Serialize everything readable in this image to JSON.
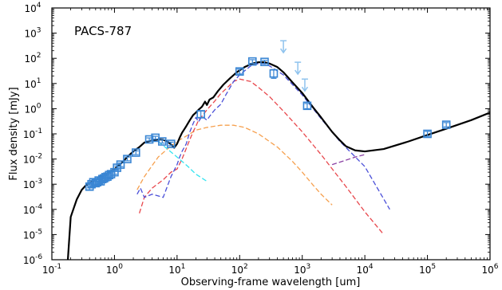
{
  "chart_data": {
    "type": "scatter",
    "title": "",
    "panel_label": "PACS-787",
    "xlabel": "Observing-frame wavelength [um]",
    "ylabel": "Flux density [mJy]",
    "xscale": "log",
    "yscale": "log",
    "xlim": [
      0.1,
      1000000
    ],
    "ylim": [
      1e-06,
      10000
    ],
    "xticks": [
      {
        "value": 0.1,
        "base": "10",
        "exp": "-1"
      },
      {
        "value": 1,
        "base": "10",
        "exp": "0"
      },
      {
        "value": 10,
        "base": "10",
        "exp": "1"
      },
      {
        "value": 100,
        "base": "10",
        "exp": "2"
      },
      {
        "value": 1000,
        "base": "10",
        "exp": "3"
      },
      {
        "value": 10000,
        "base": "10",
        "exp": "4"
      },
      {
        "value": 100000,
        "base": "10",
        "exp": "5"
      },
      {
        "value": 1000000,
        "base": "10",
        "exp": "6"
      }
    ],
    "yticks": [
      {
        "value": 1e-06,
        "base": "10",
        "exp": "-6"
      },
      {
        "value": 1e-05,
        "base": "10",
        "exp": "-5"
      },
      {
        "value": 0.0001,
        "base": "10",
        "exp": "-4"
      },
      {
        "value": 0.001,
        "base": "10",
        "exp": "-3"
      },
      {
        "value": 0.01,
        "base": "10",
        "exp": "-2"
      },
      {
        "value": 0.1,
        "base": "10",
        "exp": "-1"
      },
      {
        "value": 1,
        "base": "10",
        "exp": "0"
      },
      {
        "value": 10,
        "base": "10",
        "exp": "1"
      },
      {
        "value": 100,
        "base": "10",
        "exp": "2"
      },
      {
        "value": 1000,
        "base": "10",
        "exp": "3"
      },
      {
        "value": 10000,
        "base": "10",
        "exp": "4"
      }
    ],
    "grid": false,
    "colors": {
      "total": "#000000",
      "photometry": "#3a86d4",
      "upper_limits": "#8fc3ee",
      "stellar": "#33e4f0",
      "dust_cold": "#4a4fd8",
      "dust_warm": "#e8474c",
      "agn": "#f6a04e",
      "radio": "#8a3fa3"
    },
    "series": [
      {
        "role": "total_model",
        "style": "solid",
        "points": [
          [
            0.18,
            1e-06
          ],
          [
            0.2,
            5e-05
          ],
          [
            0.22,
            0.0001
          ],
          [
            0.25,
            0.00025
          ],
          [
            0.3,
            0.0006
          ],
          [
            0.35,
            0.0009
          ],
          [
            0.45,
            0.0013
          ],
          [
            0.6,
            0.002
          ],
          [
            0.8,
            0.0028
          ],
          [
            1.0,
            0.004
          ],
          [
            1.3,
            0.007
          ],
          [
            1.6,
            0.012
          ],
          [
            2.0,
            0.02
          ],
          [
            2.5,
            0.03
          ],
          [
            3.0,
            0.045
          ],
          [
            4.0,
            0.055
          ],
          [
            5.0,
            0.06
          ],
          [
            6.0,
            0.058
          ],
          [
            7.0,
            0.05
          ],
          [
            8.0,
            0.038
          ],
          [
            9.0,
            0.028
          ],
          [
            10.0,
            0.04
          ],
          [
            11.0,
            0.07
          ],
          [
            12.0,
            0.11
          ],
          [
            14.0,
            0.2
          ],
          [
            16.0,
            0.35
          ],
          [
            18.0,
            0.55
          ],
          [
            20.0,
            0.7
          ],
          [
            22.0,
            0.9
          ],
          [
            25.0,
            1.2
          ],
          [
            28.0,
            1.9
          ],
          [
            30.0,
            1.4
          ],
          [
            33.0,
            2.3
          ],
          [
            38.0,
            2.8
          ],
          [
            45.0,
            5
          ],
          [
            55.0,
            9
          ],
          [
            70.0,
            16
          ],
          [
            90.0,
            28
          ],
          [
            120.0,
            45
          ],
          [
            160.0,
            62
          ],
          [
            200.0,
            70
          ],
          [
            250.0,
            70
          ],
          [
            300.0,
            62
          ],
          [
            400.0,
            45
          ],
          [
            500.0,
            28
          ],
          [
            700.0,
            11
          ],
          [
            1000.0,
            4.2
          ],
          [
            1500.0,
            1.1
          ],
          [
            2000.0,
            0.45
          ],
          [
            3000.0,
            0.12
          ],
          [
            4000.0,
            0.055
          ],
          [
            5000.0,
            0.032
          ],
          [
            7000.0,
            0.022
          ],
          [
            10000.0,
            0.02
          ],
          [
            20000.0,
            0.025
          ],
          [
            50000.0,
            0.05
          ],
          [
            100000.0,
            0.09
          ],
          [
            200000.0,
            0.16
          ],
          [
            500000.0,
            0.35
          ],
          [
            1000000.0,
            0.7
          ]
        ]
      },
      {
        "role": "stellar_component",
        "style": "dashed",
        "points": [
          [
            5.0,
            0.05
          ],
          [
            7.0,
            0.025
          ],
          [
            10.0,
            0.012
          ],
          [
            15.0,
            0.005
          ],
          [
            20.0,
            0.0025
          ],
          [
            30.0,
            0.0013
          ]
        ]
      },
      {
        "role": "agn_component",
        "style": "dashed",
        "points": [
          [
            2.3,
            0.0006
          ],
          [
            3.0,
            0.002
          ],
          [
            4.0,
            0.0055
          ],
          [
            5.0,
            0.012
          ],
          [
            7.0,
            0.025
          ],
          [
            10.0,
            0.05
          ],
          [
            15.0,
            0.09
          ],
          [
            20.0,
            0.14
          ],
          [
            30.0,
            0.18
          ],
          [
            50.0,
            0.22
          ],
          [
            80.0,
            0.22
          ],
          [
            120.0,
            0.18
          ],
          [
            200.0,
            0.1
          ],
          [
            400.0,
            0.03
          ],
          [
            700.0,
            0.008
          ],
          [
            1000.0,
            0.003
          ],
          [
            1500.0,
            0.0009
          ],
          [
            2000.0,
            0.0004
          ],
          [
            3000.0,
            0.00015
          ]
        ]
      },
      {
        "role": "warm_dust_component",
        "style": "dashed",
        "points": [
          [
            2.5,
            7e-05
          ],
          [
            3.0,
            0.0003
          ],
          [
            4.0,
            0.0007
          ],
          [
            6.0,
            0.0015
          ],
          [
            8.0,
            0.003
          ],
          [
            10.0,
            0.004
          ],
          [
            12.0,
            0.01
          ],
          [
            15.0,
            0.04
          ],
          [
            18.0,
            0.12
          ],
          [
            20.0,
            0.2
          ],
          [
            22.0,
            0.35
          ],
          [
            25.0,
            0.5
          ],
          [
            30.0,
            0.9
          ],
          [
            40.0,
            2.0
          ],
          [
            50.0,
            4
          ],
          [
            60.0,
            6
          ],
          [
            80.0,
            12
          ],
          [
            100.0,
            15
          ],
          [
            150.0,
            12
          ],
          [
            200.0,
            7
          ],
          [
            300.0,
            3
          ],
          [
            500.0,
            0.8
          ],
          [
            1000.0,
            0.12
          ],
          [
            2000.0,
            0.015
          ],
          [
            5000.0,
            0.0008
          ],
          [
            10000.0,
            8e-05
          ],
          [
            20000.0,
            1e-05
          ]
        ]
      },
      {
        "role": "cold_dust_component",
        "style": "dashed",
        "points": [
          [
            2.3,
            0.0004
          ],
          [
            2.6,
            0.0007
          ],
          [
            3.0,
            0.0003
          ],
          [
            4.0,
            0.0004
          ],
          [
            6.0,
            0.0003
          ],
          [
            8.0,
            0.002
          ],
          [
            10.0,
            0.006
          ],
          [
            11.0,
            0.012
          ],
          [
            12.0,
            0.02
          ],
          [
            14.0,
            0.04
          ],
          [
            16.0,
            0.12
          ],
          [
            18.0,
            0.25
          ],
          [
            20.0,
            0.45
          ],
          [
            22.0,
            0.3
          ],
          [
            25.0,
            0.5
          ],
          [
            30.0,
            0.35
          ],
          [
            35.0,
            0.6
          ],
          [
            40.0,
            0.9
          ],
          [
            50.0,
            1.5
          ],
          [
            60.0,
            3.5
          ],
          [
            80.0,
            12
          ],
          [
            100.0,
            22
          ],
          [
            150.0,
            50
          ],
          [
            200.0,
            62
          ],
          [
            250.0,
            60
          ],
          [
            300.0,
            50
          ],
          [
            500.0,
            22
          ],
          [
            1000.0,
            3.5
          ],
          [
            2000.0,
            0.4
          ],
          [
            4000.0,
            0.05
          ],
          [
            10000.0,
            0.005
          ],
          [
            25000.0,
            0.0001
          ]
        ]
      },
      {
        "role": "radio_component",
        "style": "dashed",
        "points": [
          [
            3000.0,
            0.006
          ],
          [
            5000.0,
            0.009
          ],
          [
            7000.0,
            0.012
          ],
          [
            10000.0,
            0.015
          ]
        ]
      }
    ],
    "photometry": [
      {
        "x": 0.4,
        "y": 0.0008,
        "yerr_lo": 0.0006,
        "yerr_hi": 0.001
      },
      {
        "x": 0.43,
        "y": 0.001,
        "yerr_lo": 0.0008,
        "yerr_hi": 0.0012
      },
      {
        "x": 0.46,
        "y": 0.0012,
        "yerr_lo": 0.001,
        "yerr_hi": 0.0014
      },
      {
        "x": 0.5,
        "y": 0.0011,
        "yerr_lo": 0.0009,
        "yerr_hi": 0.0013
      },
      {
        "x": 0.53,
        "y": 0.0012,
        "yerr_lo": 0.001,
        "yerr_hi": 0.0015
      },
      {
        "x": 0.56,
        "y": 0.0014,
        "yerr_lo": 0.0012,
        "yerr_hi": 0.0017
      },
      {
        "x": 0.6,
        "y": 0.0013,
        "yerr_lo": 0.0011,
        "yerr_hi": 0.0016
      },
      {
        "x": 0.64,
        "y": 0.0016,
        "yerr_lo": 0.0013,
        "yerr_hi": 0.0019
      },
      {
        "x": 0.68,
        "y": 0.0017,
        "yerr_lo": 0.0014,
        "yerr_hi": 0.002
      },
      {
        "x": 0.72,
        "y": 0.0019,
        "yerr_lo": 0.0016,
        "yerr_hi": 0.0022
      },
      {
        "x": 0.77,
        "y": 0.002,
        "yerr_lo": 0.0017,
        "yerr_hi": 0.0024
      },
      {
        "x": 0.82,
        "y": 0.0023,
        "yerr_lo": 0.0019,
        "yerr_hi": 0.0027
      },
      {
        "x": 0.88,
        "y": 0.0025,
        "yerr_lo": 0.0021,
        "yerr_hi": 0.003
      },
      {
        "x": 1.0,
        "y": 0.003,
        "yerr_lo": 0.0025,
        "yerr_hi": 0.0036
      },
      {
        "x": 1.1,
        "y": 0.0045,
        "yerr_lo": 0.0038,
        "yerr_hi": 0.0053
      },
      {
        "x": 1.25,
        "y": 0.006,
        "yerr_lo": 0.005,
        "yerr_hi": 0.007
      },
      {
        "x": 1.6,
        "y": 0.01,
        "yerr_lo": 0.0085,
        "yerr_hi": 0.012
      },
      {
        "x": 2.2,
        "y": 0.018,
        "yerr_lo": 0.015,
        "yerr_hi": 0.021
      },
      {
        "x": 3.6,
        "y": 0.06,
        "yerr_lo": 0.052,
        "yerr_hi": 0.069
      },
      {
        "x": 4.5,
        "y": 0.07,
        "yerr_lo": 0.061,
        "yerr_hi": 0.08
      },
      {
        "x": 5.8,
        "y": 0.05,
        "yerr_lo": 0.043,
        "yerr_hi": 0.058
      },
      {
        "x": 8.0,
        "y": 0.04,
        "yerr_lo": 0.034,
        "yerr_hi": 0.047
      },
      {
        "x": 24.0,
        "y": 0.6,
        "yerr_lo": 0.45,
        "yerr_hi": 0.8
      },
      {
        "x": 100.0,
        "y": 30,
        "yerr_lo": 24,
        "yerr_hi": 37
      },
      {
        "x": 160.0,
        "y": 75,
        "yerr_lo": 63,
        "yerr_hi": 88
      },
      {
        "x": 250.0,
        "y": 72,
        "yerr_lo": 61,
        "yerr_hi": 84
      },
      {
        "x": 350.0,
        "y": 25,
        "yerr_lo": 16,
        "yerr_hi": 36
      },
      {
        "x": 1200.0,
        "y": 1.3,
        "yerr_lo": 1.0,
        "yerr_hi": 1.6
      },
      {
        "x": 100000.0,
        "y": 0.1,
        "yerr_lo": 0.08,
        "yerr_hi": 0.125
      },
      {
        "x": 200000.0,
        "y": 0.23,
        "yerr_lo": 0.19,
        "yerr_hi": 0.28
      }
    ],
    "upper_limits": [
      {
        "x": 500.0,
        "y": 500
      },
      {
        "x": 850.0,
        "y": 70
      },
      {
        "x": 1100.0,
        "y": 15
      }
    ]
  }
}
